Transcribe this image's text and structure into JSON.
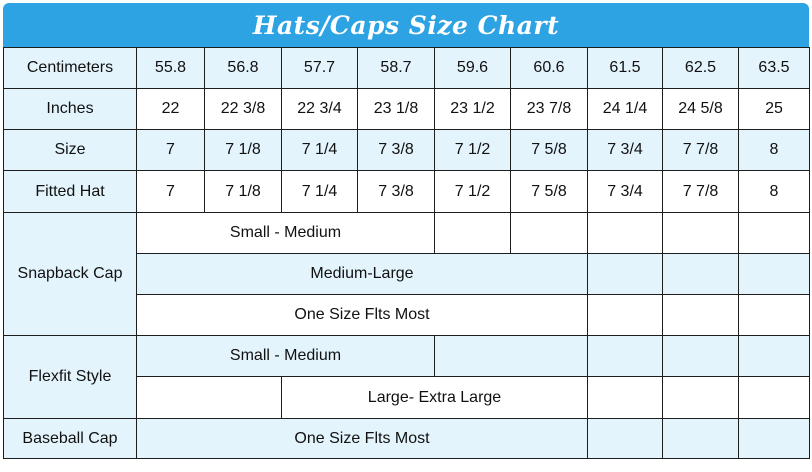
{
  "title": "Hats/Caps Size Chart",
  "rows": {
    "centimeters": {
      "label": "Centimeters",
      "values": [
        "55.8",
        "56.8",
        "57.7",
        "58.7",
        "59.6",
        "60.6",
        "61.5",
        "62.5",
        "63.5"
      ]
    },
    "inches": {
      "label": "Inches",
      "values": [
        "22",
        "22 3/8",
        "22 3/4",
        "23 1/8",
        "23 1/2",
        "23 7/8",
        "24 1/4",
        "24 5/8",
        "25"
      ]
    },
    "size": {
      "label": "Size",
      "values": [
        "7",
        "7 1/8",
        "7 1/4",
        "7 3/8",
        "7 1/2",
        "7 5/8",
        "7 3/4",
        "7 7/8",
        "8"
      ]
    },
    "fitted": {
      "label": "Fitted Hat",
      "values": [
        "7",
        "7 1/8",
        "7 1/4",
        "7 3/8",
        "7 1/2",
        "7 5/8",
        "7 3/4",
        "7 7/8",
        "8"
      ]
    }
  },
  "snapback": {
    "label": "Snapback Cap",
    "small_medium": "Small - Medium",
    "medium_large": "Medium-Large",
    "one_size": "One Size Flts Most"
  },
  "flexfit": {
    "label": "Flexfit Style",
    "small_medium": "Small - Medium",
    "large_xl": "Large- Extra Large"
  },
  "baseball": {
    "label": "Baseball Cap",
    "one_size": "One Size Flts Most"
  },
  "colors": {
    "title_bg": "#2da3e4",
    "row_bg": "#e4f4fc",
    "white_bg": "#ffffff"
  }
}
